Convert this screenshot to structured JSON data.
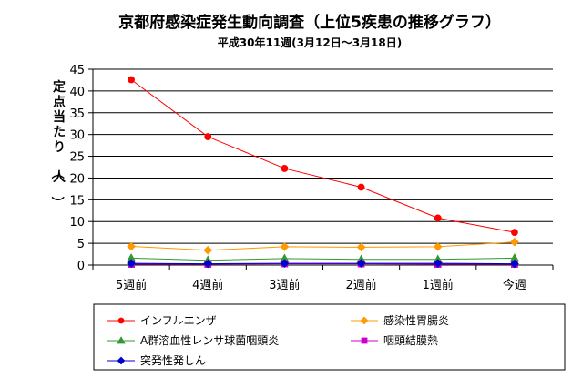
{
  "chart_data": {
    "type": "line",
    "title": "京都府感染症発生動向調査（上位5疾患の推移グラフ）",
    "subtitle": "平成30年11週(3月12日〜3月18日)",
    "ylabel": "定点当たり（人）",
    "xlabel": "",
    "categories": [
      "5週前",
      "4週前",
      "3週前",
      "2週前",
      "1週前",
      "今週"
    ],
    "ylim": [
      0,
      45
    ],
    "yticks": [
      0,
      5,
      10,
      15,
      20,
      25,
      30,
      35,
      40,
      45
    ],
    "grid": "horizontal",
    "legend_position": "bottom",
    "series": [
      {
        "name": "インフルエンザ",
        "color": "#ff0000",
        "marker": "circle",
        "values": [
          42.6,
          29.5,
          22.2,
          17.9,
          10.8,
          7.5
        ]
      },
      {
        "name": "感染性胃腸炎",
        "color": "#ff9900",
        "marker": "diamond",
        "values": [
          4.3,
          3.4,
          4.2,
          4.1,
          4.2,
          5.3
        ]
      },
      {
        "name": "A群溶血性レンサ球菌咽頭炎",
        "color": "#339933",
        "marker": "triangle",
        "values": [
          1.6,
          1.1,
          1.5,
          1.3,
          1.3,
          1.6
        ]
      },
      {
        "name": "咽頭結膜熱",
        "color": "#cc00cc",
        "marker": "square",
        "values": [
          0.2,
          0.2,
          0.3,
          0.3,
          0.2,
          0.2
        ]
      },
      {
        "name": "突発性発しん",
        "color": "#0000cc",
        "marker": "diamond",
        "values": [
          0.4,
          0.3,
          0.4,
          0.4,
          0.4,
          0.3
        ]
      }
    ]
  }
}
